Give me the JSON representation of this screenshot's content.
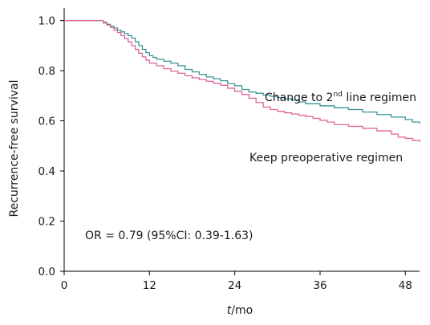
{
  "chart_data": {
    "type": "line",
    "xlabel_italic": "t",
    "xlabel_rest": "/mo",
    "ylabel": "Recurrence-free survival",
    "xlim": [
      0,
      50
    ],
    "ylim": [
      0,
      1.05
    ],
    "xticks": [
      0,
      12,
      24,
      36,
      48
    ],
    "xtick_labels": [
      "0",
      "12",
      "24",
      "36",
      "48"
    ],
    "yticks": [
      0,
      0.2,
      0.4,
      0.6,
      0.8,
      1.0
    ],
    "ytick_labels": [
      "0.0",
      "0.2",
      "0.4",
      "0.6",
      "0.8",
      "1.0"
    ],
    "grid": false,
    "annotation": "OR = 0.79 (95%CI: 0.39-1.63)",
    "series": [
      {
        "label_pre": "Change to 2",
        "label_sup": "nd",
        "label_post": " line regimen",
        "color": "#3a9494",
        "step": true,
        "points": [
          [
            0,
            1.0
          ],
          [
            5,
            1.0
          ],
          [
            5.5,
            0.993
          ],
          [
            6,
            0.985
          ],
          [
            6.5,
            0.978
          ],
          [
            7,
            0.97
          ],
          [
            7.5,
            0.962
          ],
          [
            8,
            0.955
          ],
          [
            8.5,
            0.948
          ],
          [
            9,
            0.94
          ],
          [
            9.5,
            0.93
          ],
          [
            10,
            0.915
          ],
          [
            10.5,
            0.9
          ],
          [
            11,
            0.885
          ],
          [
            11.5,
            0.872
          ],
          [
            12,
            0.86
          ],
          [
            12.5,
            0.853
          ],
          [
            13,
            0.846
          ],
          [
            14,
            0.838
          ],
          [
            15,
            0.83
          ],
          [
            16,
            0.82
          ],
          [
            17,
            0.805
          ],
          [
            18,
            0.795
          ],
          [
            19,
            0.785
          ],
          [
            20,
            0.775
          ],
          [
            21,
            0.768
          ],
          [
            22,
            0.76
          ],
          [
            23,
            0.748
          ],
          [
            24,
            0.74
          ],
          [
            25,
            0.725
          ],
          [
            26,
            0.715
          ],
          [
            27,
            0.71
          ],
          [
            28,
            0.703
          ],
          [
            29,
            0.698
          ],
          [
            30,
            0.693
          ],
          [
            31,
            0.688
          ],
          [
            32,
            0.683
          ],
          [
            33,
            0.675
          ],
          [
            34,
            0.668
          ],
          [
            36,
            0.66
          ],
          [
            38,
            0.652
          ],
          [
            40,
            0.645
          ],
          [
            42,
            0.635
          ],
          [
            44,
            0.625
          ],
          [
            46,
            0.615
          ],
          [
            48,
            0.605
          ],
          [
            49,
            0.595
          ],
          [
            50,
            0.588
          ]
        ]
      },
      {
        "label": "Keep preoperative regimen",
        "color": "#dd6699",
        "step": true,
        "points": [
          [
            0,
            1.0
          ],
          [
            5,
            1.0
          ],
          [
            5.5,
            0.99
          ],
          [
            6,
            0.982
          ],
          [
            6.5,
            0.972
          ],
          [
            7,
            0.962
          ],
          [
            7.5,
            0.952
          ],
          [
            8,
            0.94
          ],
          [
            8.5,
            0.928
          ],
          [
            9,
            0.915
          ],
          [
            9.5,
            0.9
          ],
          [
            10,
            0.885
          ],
          [
            10.5,
            0.87
          ],
          [
            11,
            0.855
          ],
          [
            11.5,
            0.842
          ],
          [
            12,
            0.83
          ],
          [
            13,
            0.82
          ],
          [
            14,
            0.808
          ],
          [
            15,
            0.798
          ],
          [
            16,
            0.79
          ],
          [
            17,
            0.78
          ],
          [
            18,
            0.772
          ],
          [
            19,
            0.765
          ],
          [
            20,
            0.758
          ],
          [
            21,
            0.75
          ],
          [
            22,
            0.742
          ],
          [
            23,
            0.73
          ],
          [
            24,
            0.718
          ],
          [
            25,
            0.705
          ],
          [
            26,
            0.69
          ],
          [
            27,
            0.673
          ],
          [
            28,
            0.655
          ],
          [
            29,
            0.645
          ],
          [
            30,
            0.638
          ],
          [
            31,
            0.632
          ],
          [
            32,
            0.627
          ],
          [
            33,
            0.622
          ],
          [
            34,
            0.617
          ],
          [
            35,
            0.61
          ],
          [
            36,
            0.602
          ],
          [
            37,
            0.595
          ],
          [
            38,
            0.585
          ],
          [
            40,
            0.578
          ],
          [
            42,
            0.57
          ],
          [
            44,
            0.56
          ],
          [
            46,
            0.547
          ],
          [
            47,
            0.535
          ],
          [
            48,
            0.53
          ],
          [
            49,
            0.522
          ],
          [
            50,
            0.515
          ]
        ]
      }
    ]
  }
}
